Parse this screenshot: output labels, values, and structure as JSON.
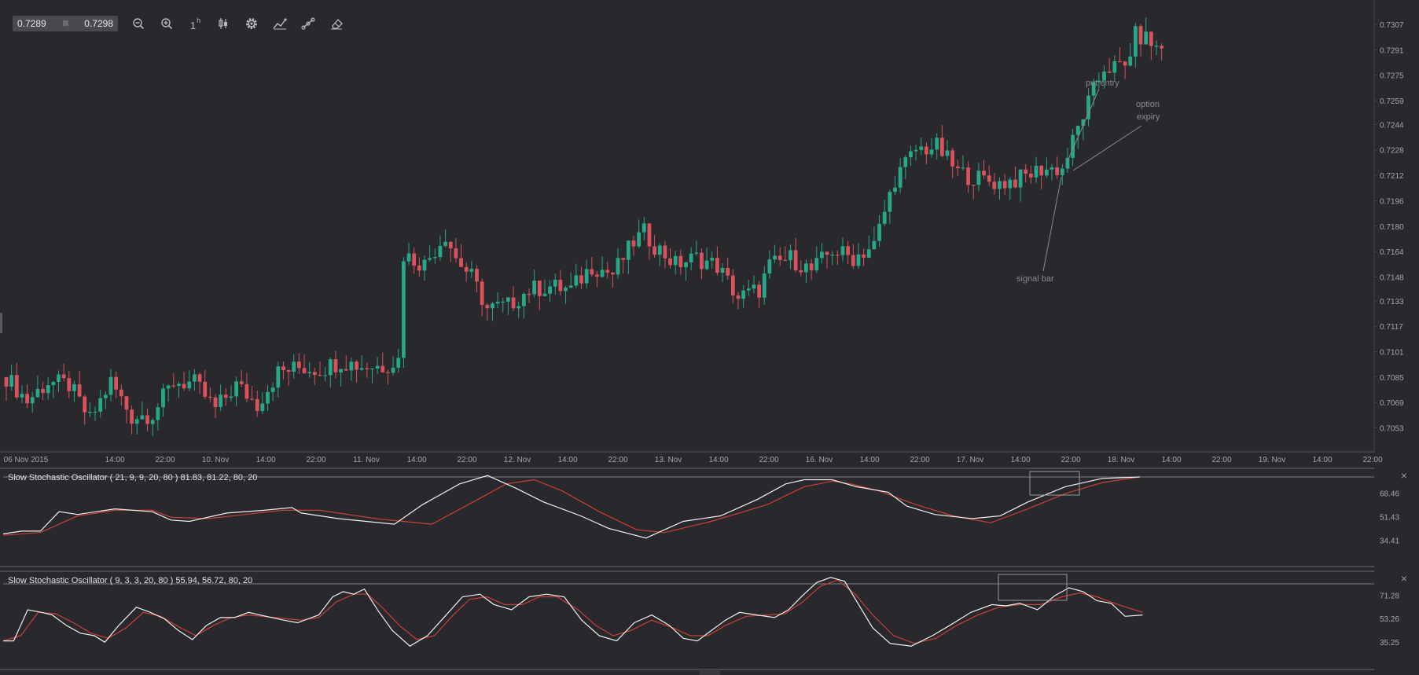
{
  "toolbar": {
    "price_left": "0.7289",
    "price_right": "0.7298",
    "interval_label": "1",
    "interval_suffix": "h",
    "tools": [
      "zoom-out-icon",
      "zoom-in-icon",
      "interval-icon",
      "candle-type-icon",
      "gear-icon",
      "indicator-icon",
      "draw-line-icon",
      "eraser-icon"
    ]
  },
  "indicators": [
    {
      "title": "Slow Stochastic Oscillator ( 21, 9, 9, 20, 80 ) 81.83, 81.22, 80, 20",
      "ticks": [
        "68.46",
        "51.43",
        "34.41"
      ]
    },
    {
      "title": "Slow Stochastic Oscillator ( 9, 3, 3, 20, 80 ) 55.94, 56.72, 80, 20",
      "ticks": [
        "71.28",
        "53.26",
        "35.25"
      ]
    }
  ],
  "colors": {
    "background": "#29282d",
    "up": "#26a889",
    "down": "#d9525c",
    "k_line": "#f0f0f0",
    "d_line": "#c8403c",
    "axis_text": "#a6a6a6",
    "annotation": "#8a8a8a"
  },
  "chart_data": {
    "type": "candlestick",
    "price_axis_ticks": [
      "0.7307",
      "0.7291",
      "0.7275",
      "0.7259",
      "0.7244",
      "0.7228",
      "0.7212",
      "0.7196",
      "0.7180",
      "0.7164",
      "0.7148",
      "0.7133",
      "0.7117",
      "0.7101",
      "0.7085",
      "0.7069",
      "0.7053"
    ],
    "ylim": [
      0.704,
      0.7312
    ],
    "x_ticks": [
      "06 Nov 2015",
      "14:00",
      "22:00",
      "10. Nov",
      "14:00",
      "22:00",
      "11. Nov",
      "14:00",
      "22:00",
      "12. Nov",
      "14:00",
      "22:00",
      "13. Nov",
      "14:00",
      "22:00",
      "16. Nov",
      "14:00",
      "22:00",
      "17. Nov",
      "14:00",
      "22:00",
      "18. Nov",
      "14:00",
      "22:00",
      "19. Nov",
      "14:00",
      "22:00"
    ],
    "annotations": [
      "put entry",
      "option expiry",
      "signal bar"
    ],
    "price_anchors": [
      [
        0,
        0.7085
      ],
      [
        4,
        0.707
      ],
      [
        8,
        0.7082
      ],
      [
        12,
        0.708
      ],
      [
        16,
        0.7058
      ],
      [
        20,
        0.7082
      ],
      [
        24,
        0.706
      ],
      [
        28,
        0.7062
      ],
      [
        32,
        0.7082
      ],
      [
        36,
        0.7081
      ],
      [
        40,
        0.7065
      ],
      [
        44,
        0.708
      ],
      [
        48,
        0.7068
      ],
      [
        52,
        0.7088
      ],
      [
        56,
        0.7091
      ],
      [
        60,
        0.709
      ],
      [
        64,
        0.7095
      ],
      [
        68,
        0.7092
      ],
      [
        72,
        0.7092
      ],
      [
        75,
        0.7096
      ],
      [
        76,
        0.7162
      ],
      [
        80,
        0.7156
      ],
      [
        84,
        0.7175
      ],
      [
        86,
        0.716
      ],
      [
        89,
        0.7148
      ],
      [
        92,
        0.7128
      ],
      [
        96,
        0.713
      ],
      [
        100,
        0.714
      ],
      [
        104,
        0.7142
      ],
      [
        108,
        0.714
      ],
      [
        112,
        0.7155
      ],
      [
        116,
        0.715
      ],
      [
        120,
        0.717
      ],
      [
        122,
        0.7176
      ],
      [
        124,
        0.7168
      ],
      [
        128,
        0.7156
      ],
      [
        132,
        0.716
      ],
      [
        136,
        0.7155
      ],
      [
        140,
        0.7135
      ],
      [
        144,
        0.714
      ],
      [
        146,
        0.7155
      ],
      [
        150,
        0.716
      ],
      [
        154,
        0.7152
      ],
      [
        158,
        0.7165
      ],
      [
        162,
        0.716
      ],
      [
        166,
        0.7168
      ],
      [
        170,
        0.721
      ],
      [
        174,
        0.7228
      ],
      [
        178,
        0.723
      ],
      [
        180,
        0.7222
      ],
      [
        182,
        0.7214
      ],
      [
        186,
        0.721
      ],
      [
        190,
        0.7207
      ],
      [
        194,
        0.721
      ],
      [
        198,
        0.7216
      ],
      [
        202,
        0.7216
      ],
      [
        206,
        0.725
      ],
      [
        210,
        0.728
      ],
      [
        214,
        0.728
      ],
      [
        216,
        0.73
      ],
      [
        218,
        0.7298
      ],
      [
        220,
        0.7292
      ]
    ],
    "stoch_slow": {
      "k": [
        [
          0,
          39
        ],
        [
          10,
          41
        ],
        [
          20,
          41
        ],
        [
          30,
          55
        ],
        [
          40,
          53
        ],
        [
          60,
          57
        ],
        [
          80,
          55
        ],
        [
          90,
          49
        ],
        [
          100,
          48
        ],
        [
          120,
          54
        ],
        [
          140,
          56
        ],
        [
          155,
          58
        ],
        [
          160,
          54
        ],
        [
          180,
          50
        ],
        [
          210,
          46
        ],
        [
          225,
          60
        ],
        [
          245,
          75
        ],
        [
          260,
          81
        ],
        [
          275,
          72
        ],
        [
          290,
          62
        ],
        [
          310,
          52
        ],
        [
          325,
          43
        ],
        [
          345,
          36
        ],
        [
          365,
          48
        ],
        [
          385,
          52
        ],
        [
          405,
          64
        ],
        [
          420,
          75
        ],
        [
          430,
          78
        ],
        [
          445,
          78
        ],
        [
          458,
          73
        ],
        [
          475,
          69
        ],
        [
          485,
          59
        ],
        [
          500,
          53
        ],
        [
          520,
          50
        ],
        [
          535,
          52
        ],
        [
          550,
          62
        ],
        [
          570,
          73
        ],
        [
          590,
          79
        ],
        [
          610,
          80
        ]
      ],
      "d": [
        [
          0,
          38
        ],
        [
          20,
          40
        ],
        [
          40,
          52
        ],
        [
          60,
          56
        ],
        [
          80,
          56
        ],
        [
          90,
          51
        ],
        [
          110,
          50
        ],
        [
          130,
          53
        ],
        [
          150,
          56
        ],
        [
          170,
          56
        ],
        [
          200,
          50
        ],
        [
          230,
          46
        ],
        [
          255,
          64
        ],
        [
          270,
          75
        ],
        [
          285,
          78
        ],
        [
          300,
          70
        ],
        [
          320,
          55
        ],
        [
          340,
          42
        ],
        [
          355,
          40
        ],
        [
          380,
          48
        ],
        [
          410,
          60
        ],
        [
          430,
          73
        ],
        [
          445,
          77
        ],
        [
          455,
          75
        ],
        [
          470,
          70
        ],
        [
          490,
          60
        ],
        [
          510,
          52
        ],
        [
          530,
          47
        ],
        [
          550,
          57
        ],
        [
          570,
          68
        ],
        [
          590,
          76
        ],
        [
          610,
          80
        ]
      ]
    },
    "stoch_fast": {
      "k": [
        [
          0,
          36
        ],
        [
          6,
          36
        ],
        [
          14,
          60
        ],
        [
          22,
          58
        ],
        [
          28,
          56
        ],
        [
          36,
          48
        ],
        [
          44,
          42
        ],
        [
          52,
          40
        ],
        [
          58,
          35
        ],
        [
          66,
          48
        ],
        [
          76,
          62
        ],
        [
          84,
          58
        ],
        [
          92,
          53
        ],
        [
          100,
          44
        ],
        [
          108,
          37
        ],
        [
          116,
          48
        ],
        [
          124,
          54
        ],
        [
          132,
          54
        ],
        [
          140,
          58
        ],
        [
          150,
          55
        ],
        [
          160,
          52
        ],
        [
          168,
          50
        ],
        [
          174,
          53
        ],
        [
          180,
          56
        ],
        [
          188,
          70
        ],
        [
          194,
          74
        ],
        [
          200,
          72
        ],
        [
          206,
          76
        ],
        [
          214,
          59
        ],
        [
          222,
          44
        ],
        [
          232,
          32
        ],
        [
          242,
          40
        ],
        [
          252,
          55
        ],
        [
          262,
          70
        ],
        [
          272,
          72
        ],
        [
          280,
          64
        ],
        [
          290,
          60
        ],
        [
          300,
          70
        ],
        [
          310,
          72
        ],
        [
          320,
          70
        ],
        [
          330,
          52
        ],
        [
          340,
          40
        ],
        [
          350,
          36
        ],
        [
          360,
          50
        ],
        [
          370,
          56
        ],
        [
          380,
          48
        ],
        [
          388,
          38
        ],
        [
          396,
          36
        ],
        [
          404,
          44
        ],
        [
          412,
          52
        ],
        [
          420,
          58
        ],
        [
          430,
          56
        ],
        [
          440,
          54
        ],
        [
          448,
          60
        ],
        [
          456,
          71
        ],
        [
          464,
          81
        ],
        [
          472,
          85
        ],
        [
          480,
          82
        ],
        [
          488,
          64
        ],
        [
          496,
          46
        ],
        [
          506,
          34
        ],
        [
          518,
          32
        ],
        [
          530,
          40
        ],
        [
          540,
          48
        ],
        [
          552,
          58
        ],
        [
          564,
          64
        ],
        [
          572,
          63
        ],
        [
          580,
          65
        ],
        [
          590,
          60
        ],
        [
          600,
          71
        ],
        [
          608,
          77
        ],
        [
          616,
          74
        ],
        [
          624,
          67
        ],
        [
          632,
          65
        ],
        [
          640,
          55
        ],
        [
          650,
          56
        ]
      ],
      "d": [
        [
          0,
          36
        ],
        [
          10,
          40
        ],
        [
          20,
          58
        ],
        [
          30,
          57
        ],
        [
          40,
          50
        ],
        [
          50,
          42
        ],
        [
          60,
          38
        ],
        [
          70,
          46
        ],
        [
          80,
          58
        ],
        [
          90,
          55
        ],
        [
          100,
          47
        ],
        [
          110,
          40
        ],
        [
          120,
          48
        ],
        [
          130,
          54
        ],
        [
          140,
          56
        ],
        [
          155,
          54
        ],
        [
          170,
          52
        ],
        [
          180,
          54
        ],
        [
          190,
          66
        ],
        [
          200,
          72
        ],
        [
          208,
          72
        ],
        [
          216,
          62
        ],
        [
          226,
          48
        ],
        [
          236,
          37
        ],
        [
          246,
          40
        ],
        [
          256,
          55
        ],
        [
          266,
          68
        ],
        [
          276,
          70
        ],
        [
          286,
          64
        ],
        [
          296,
          64
        ],
        [
          306,
          70
        ],
        [
          316,
          70
        ],
        [
          328,
          60
        ],
        [
          338,
          48
        ],
        [
          348,
          40
        ],
        [
          358,
          44
        ],
        [
          370,
          52
        ],
        [
          382,
          46
        ],
        [
          392,
          40
        ],
        [
          402,
          40
        ],
        [
          412,
          48
        ],
        [
          424,
          55
        ],
        [
          436,
          56
        ],
        [
          446,
          57
        ],
        [
          456,
          66
        ],
        [
          466,
          78
        ],
        [
          476,
          83
        ],
        [
          486,
          72
        ],
        [
          496,
          56
        ],
        [
          508,
          40
        ],
        [
          520,
          34
        ],
        [
          532,
          38
        ],
        [
          544,
          48
        ],
        [
          556,
          56
        ],
        [
          568,
          62
        ],
        [
          580,
          64
        ],
        [
          592,
          64
        ],
        [
          604,
          70
        ],
        [
          614,
          73
        ],
        [
          624,
          70
        ],
        [
          636,
          64
        ],
        [
          650,
          58
        ]
      ]
    }
  }
}
